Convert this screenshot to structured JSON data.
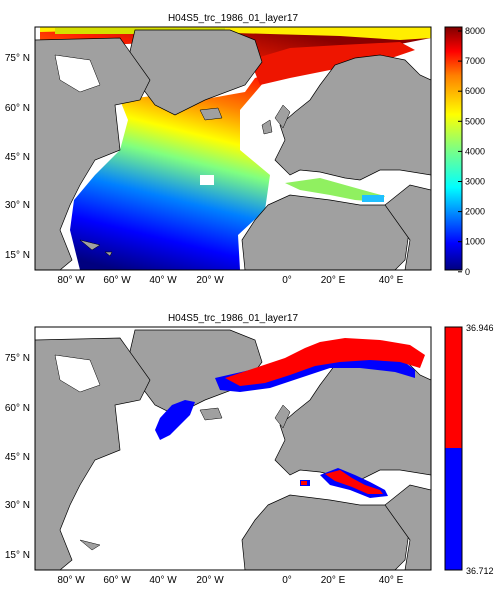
{
  "top_panel": {
    "title": "H04S5_trc_1986_01_layer17",
    "colorbar": {
      "ticks": [
        "8000",
        "7000",
        "6000",
        "5000",
        "4000",
        "3000",
        "2000",
        "1000",
        "0"
      ],
      "colors": [
        "#00007f",
        "#0000ff",
        "#0080ff",
        "#00ffff",
        "#80ff80",
        "#ffff00",
        "#ff8000",
        "#ff0000",
        "#7f0000"
      ]
    }
  },
  "bottom_panel": {
    "title": "H04S5_trc_1986_01_layer17",
    "colorbar": {
      "max_label": "36.946",
      "min_label": "36.712",
      "colors": [
        "#ff0000",
        "#0000ff"
      ]
    }
  },
  "axes": {
    "lat_labels": [
      "75",
      "60",
      "45",
      "30",
      "15"
    ],
    "lat_suffix": "N",
    "lon_labels": [
      {
        "num": "80",
        "dir": "W"
      },
      {
        "num": "60",
        "dir": "W"
      },
      {
        "num": "40",
        "dir": "W"
      },
      {
        "num": "20",
        "dir": "W"
      },
      {
        "num": "0",
        "dir": ""
      },
      {
        "num": "20",
        "dir": "E"
      },
      {
        "num": "40",
        "dir": "E"
      }
    ]
  },
  "colors": {
    "land": "#a0a0a0",
    "ocean_missing": "#ffffff",
    "coast": "#000000"
  }
}
